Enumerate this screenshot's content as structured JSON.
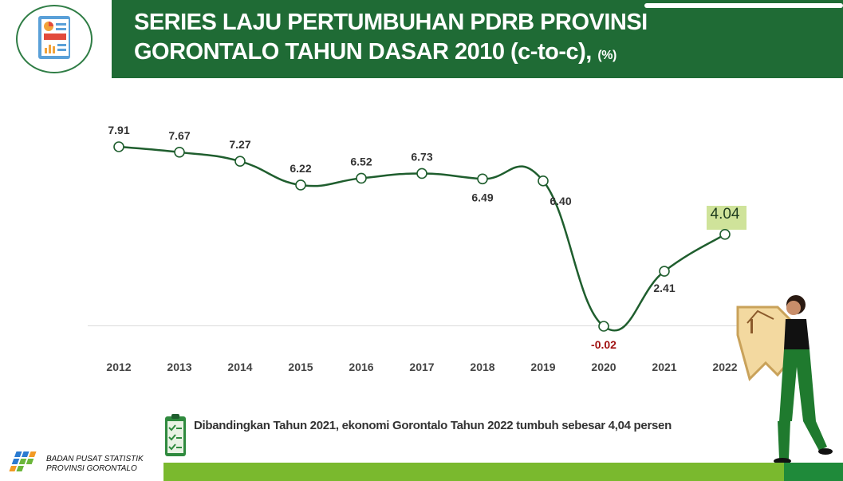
{
  "header": {
    "title_line1": "SERIES LAJU PERTUMBUHAN PDRB PROVINSI",
    "title_line2": "GORONTALO TAHUN DASAR 2010 (c-to-c),",
    "title_unit": "(%)"
  },
  "chart_data": {
    "type": "line",
    "categories": [
      "2012",
      "2013",
      "2014",
      "2015",
      "2016",
      "2017",
      "2018",
      "2019",
      "2020",
      "2021",
      "2022"
    ],
    "values": [
      7.91,
      7.67,
      7.27,
      6.22,
      6.52,
      6.73,
      6.49,
      6.4,
      -0.02,
      2.41,
      4.04
    ],
    "labels": [
      "7.91",
      "7.67",
      "7.27",
      "6.22",
      "6.52",
      "6.73",
      "6.49",
      "6.40",
      "-0.02",
      "2.41",
      "4.04"
    ],
    "highlight_last": true,
    "colors": {
      "line": "#1f5e2e",
      "negative_label": "#a01010",
      "highlight_bg": "#cfe39a",
      "axis_label": "#444444"
    }
  },
  "summary": {
    "text": "Dibandingkan Tahun 2021, ekonomi Gorontalo Tahun 2022 tumbuh sebesar 4,04 persen"
  },
  "footer": {
    "org_line1": "BADAN PUSAT STATISTIK",
    "org_line2": "PROVINSI GORONTALO"
  }
}
